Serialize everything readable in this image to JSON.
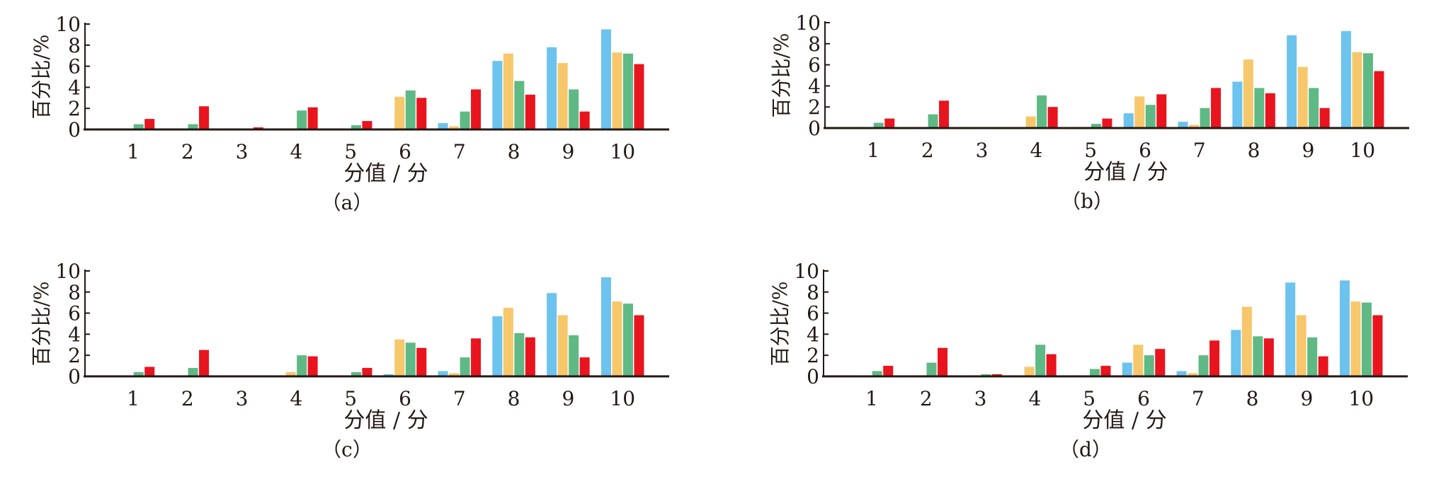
{
  "chart_data": {
    "type": "bar",
    "colors": [
      "#6cc3ee",
      "#f7c76b",
      "#5fb985",
      "#e8141e"
    ],
    "panels": [
      {
        "caption": "（a）",
        "xlabel": "分值 / 分",
        "ylabel": "百分比/%",
        "ylim": [
          0,
          10
        ],
        "yticks": [
          "0",
          "2",
          "4",
          "6",
          "8",
          "10"
        ],
        "categories": [
          "1",
          "2",
          "3",
          "4",
          "5",
          "6",
          "7",
          "8",
          "9",
          "10"
        ],
        "series": [
          {
            "values": [
              0,
              0,
              0,
              0,
              0,
              0.1,
              0.6,
              6.5,
              7.8,
              9.5
            ]
          },
          {
            "values": [
              0,
              0,
              0,
              0.05,
              0.05,
              3.1,
              0.3,
              7.2,
              6.3,
              7.3
            ]
          },
          {
            "values": [
              0.5,
              0.5,
              0.1,
              1.8,
              0.4,
              3.7,
              1.7,
              4.6,
              3.8,
              7.2
            ]
          },
          {
            "values": [
              1.0,
              2.2,
              0.2,
              2.1,
              0.8,
              3.0,
              3.8,
              3.3,
              1.7,
              6.2
            ]
          }
        ]
      },
      {
        "caption": "（b）",
        "xlabel": "分值 / 分",
        "ylabel": "百分比/%",
        "ylim": [
          0,
          10
        ],
        "yticks": [
          "0",
          "2",
          "4",
          "6",
          "8",
          "10"
        ],
        "categories": [
          "1",
          "2",
          "3",
          "4",
          "5",
          "6",
          "7",
          "8",
          "9",
          "10"
        ],
        "series": [
          {
            "values": [
              0,
              0,
              0,
              0,
              0,
              1.4,
              0.6,
              4.4,
              8.8,
              9.2
            ]
          },
          {
            "values": [
              0,
              0.1,
              0,
              1.1,
              0,
              3.0,
              0.3,
              6.5,
              5.8,
              7.2
            ]
          },
          {
            "values": [
              0.5,
              1.3,
              0.1,
              3.1,
              0.4,
              2.2,
              1.9,
              3.8,
              3.8,
              7.1
            ]
          },
          {
            "values": [
              0.9,
              2.6,
              0.1,
              2.0,
              0.9,
              3.2,
              3.8,
              3.3,
              1.9,
              5.4
            ]
          }
        ]
      },
      {
        "caption": "（c）",
        "xlabel": "分值 / 分",
        "ylabel": "百分比/%",
        "ylim": [
          0,
          10
        ],
        "yticks": [
          "0",
          "2",
          "4",
          "6",
          "8",
          "10"
        ],
        "categories": [
          "1",
          "2",
          "3",
          "4",
          "5",
          "6",
          "7",
          "8",
          "9",
          "10"
        ],
        "series": [
          {
            "values": [
              0,
              0,
              0,
              0,
              0,
              0.2,
              0.5,
              5.7,
              7.9,
              9.4
            ]
          },
          {
            "values": [
              0,
              0,
              0,
              0.4,
              0,
              3.5,
              0.3,
              6.5,
              5.8,
              7.1
            ]
          },
          {
            "values": [
              0.4,
              0.8,
              0.1,
              2.0,
              0.4,
              3.2,
              1.8,
              4.1,
              3.9,
              6.9
            ]
          },
          {
            "values": [
              0.9,
              2.5,
              0.1,
              1.9,
              0.8,
              2.7,
              3.6,
              3.7,
              1.8,
              5.8
            ]
          }
        ]
      },
      {
        "caption": "（d）",
        "xlabel": "分值 / 分",
        "ylabel": "百分比/%",
        "ylim": [
          0,
          10
        ],
        "yticks": [
          "0",
          "2",
          "4",
          "6",
          "8",
          "10"
        ],
        "categories": [
          "1",
          "2",
          "3",
          "4",
          "5",
          "6",
          "7",
          "8",
          "9",
          "10"
        ],
        "series": [
          {
            "values": [
              0,
              0,
              0,
              0,
              0,
              1.3,
              0.5,
              4.4,
              8.9,
              9.1
            ]
          },
          {
            "values": [
              0,
              0.1,
              0,
              0.9,
              0,
              3.0,
              0.3,
              6.6,
              5.8,
              7.1
            ]
          },
          {
            "values": [
              0.5,
              1.3,
              0.2,
              3.0,
              0.7,
              2.0,
              2.0,
              3.8,
              3.7,
              7.0
            ]
          },
          {
            "values": [
              1.0,
              2.7,
              0.2,
              2.1,
              1.0,
              2.6,
              3.4,
              3.6,
              1.9,
              5.8
            ]
          }
        ]
      }
    ]
  }
}
